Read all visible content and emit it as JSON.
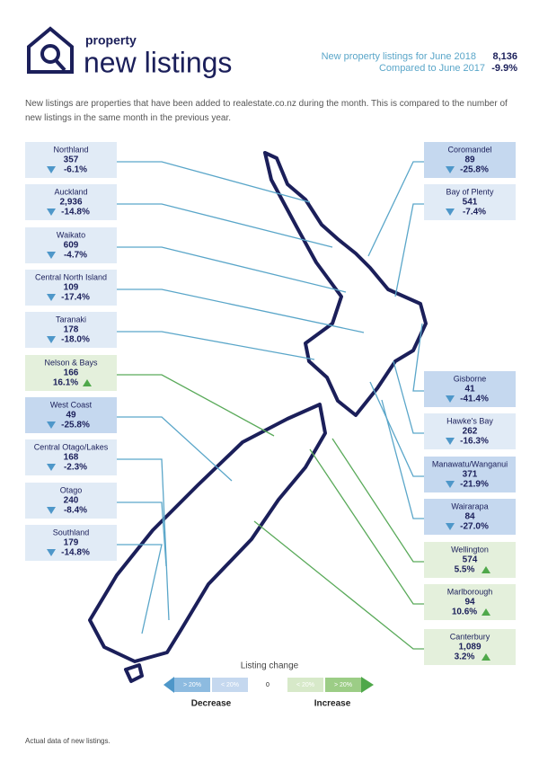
{
  "header": {
    "title_small": "property",
    "title_large": "new listings",
    "summary_label": "New property listings for June 2018",
    "summary_value": "8,136",
    "compare_label": "Compared to June 2017",
    "compare_value": "-9.9%"
  },
  "description": "New listings are properties that have been added to realestate.co.nz during the month. This is compared to the number of new listings in the same month in the previous year.",
  "regions": [
    {
      "name": "Northland",
      "listings": "357",
      "change": "-6.1%",
      "color": "#e1ebf6"
    },
    {
      "name": "Auckland",
      "listings": "2,936",
      "change": "-14.8%",
      "color": "#e1ebf6"
    },
    {
      "name": "Waikato",
      "listings": "609",
      "change": "-4.7%",
      "color": "#e1ebf6"
    },
    {
      "name": "Central North Island",
      "listings": "109",
      "change": "-17.4%",
      "color": "#e1ebf6"
    },
    {
      "name": "Taranaki",
      "listings": "178",
      "change": "-18.0%",
      "color": "#e1ebf6"
    },
    {
      "name": "Nelson & Bays",
      "listings": "166",
      "change": "16.1%",
      "color": "#e4f0dc"
    },
    {
      "name": "West Coast",
      "listings": "49",
      "change": "-25.8%",
      "color": "#c5d8ef"
    },
    {
      "name": "Central Otago/Lakes",
      "listings": "168",
      "change": "-2.3%",
      "color": "#e1ebf6"
    },
    {
      "name": "Otago",
      "listings": "240",
      "change": "-8.4%",
      "color": "#e1ebf6"
    },
    {
      "name": "Southland",
      "listings": "179",
      "change": "-14.8%",
      "color": "#e1ebf6"
    },
    {
      "name": "Coromandel",
      "listings": "89",
      "change": "-25.8%",
      "color": "#c5d8ef"
    },
    {
      "name": "Bay of Plenty",
      "listings": "541",
      "change": "-7.4%",
      "color": "#e1ebf6"
    },
    {
      "name": "Gisborne",
      "listings": "41",
      "change": "-41.4%",
      "color": "#c5d8ef"
    },
    {
      "name": "Hawke's Bay",
      "listings": "262",
      "change": "-16.3%",
      "color": "#e1ebf6"
    },
    {
      "name": "Manawatu/Wanganui",
      "listings": "371",
      "change": "-21.9%",
      "color": "#c5d8ef"
    },
    {
      "name": "Wairarapa",
      "listings": "84",
      "change": "-27.0%",
      "color": "#c5d8ef"
    },
    {
      "name": "Wellington",
      "listings": "574",
      "change": "5.5%",
      "color": "#e4f0dc"
    },
    {
      "name": "Marlborough",
      "listings": "94",
      "change": "10.6%",
      "color": "#e4f0dc"
    },
    {
      "name": "Canterbury",
      "listings": "1,089",
      "change": "3.2%",
      "color": "#e4f0dc"
    }
  ],
  "legend": {
    "title": "Listing change",
    "steps": [
      "> 20%",
      "< 20%",
      "0",
      "< 20%",
      "> 20%"
    ],
    "decrease": "Decrease",
    "increase": "Increase"
  },
  "footnote": "Actual data of new listings."
}
